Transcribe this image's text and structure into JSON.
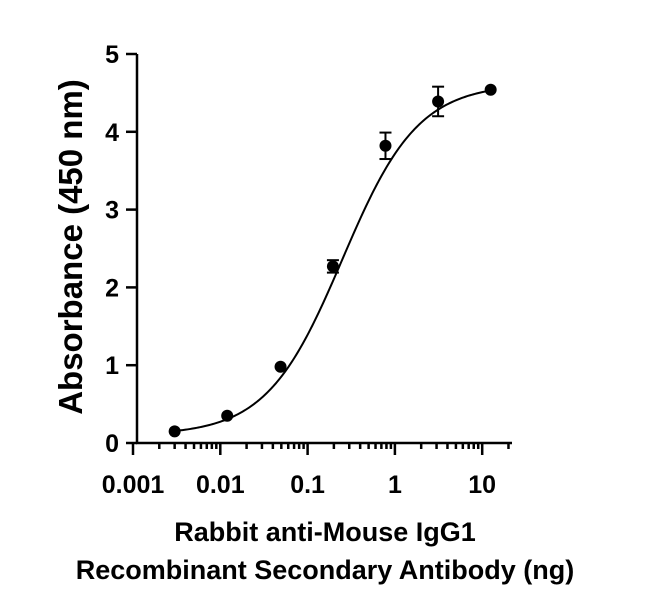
{
  "chart_data": {
    "type": "scatter",
    "title": "",
    "xlabel_lines": [
      "Rabbit anti-Mouse IgG1",
      "Recombinant Secondary Antibody (ng)"
    ],
    "ylabel": "Absorbance (450 nm)",
    "xscale": "log",
    "xlim": [
      0.001,
      20
    ],
    "ylim": [
      0,
      5
    ],
    "xticks": [
      0.001,
      0.01,
      0.1,
      1,
      10
    ],
    "xtick_labels": [
      "0.001",
      "0.01",
      "0.1",
      "1",
      "10"
    ],
    "yticks": [
      0,
      1,
      2,
      3,
      4,
      5
    ],
    "ytick_labels": [
      "0",
      "1",
      "2",
      "3",
      "4",
      "5"
    ],
    "grid": false,
    "legend": "none",
    "series": [
      {
        "x": [
          0.003,
          0.012,
          0.049,
          0.195,
          0.78,
          3.125,
          12.5
        ],
        "y": [
          0.15,
          0.35,
          0.98,
          2.27,
          3.82,
          4.39,
          4.54
        ],
        "error": [
          0.02,
          0.03,
          0.03,
          0.08,
          0.17,
          0.19,
          0.02
        ]
      }
    ],
    "fit": {
      "model": "4PL sigmoid",
      "bottom": 0.1,
      "top": 4.62,
      "ec50": 0.25,
      "hill": 1.0
    }
  }
}
